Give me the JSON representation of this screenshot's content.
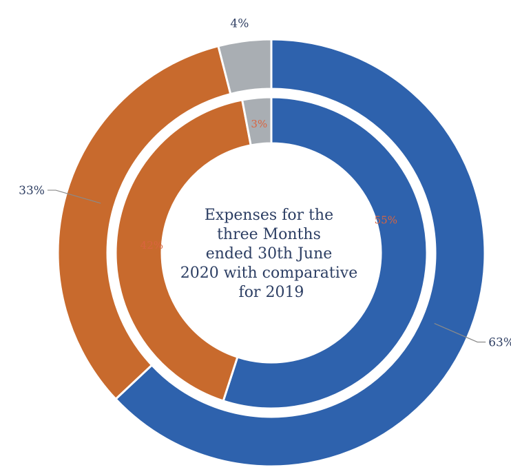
{
  "chart_data": {
    "type": "pie",
    "style": "double-donut",
    "title": "Expenses for the three Months ended 30th June 2020 with comparative for 2019",
    "title_lines": [
      "Expenses for the",
      "three Months",
      "ended 30th June",
      "2020 with comparative",
      "for 2019"
    ],
    "colors": [
      "#2e62ad",
      "#c86a2d",
      "#a9aeb3"
    ],
    "rings": [
      {
        "ring": "outer",
        "values": [
          63,
          33,
          4
        ],
        "labels": [
          "63%",
          "33%",
          "4%"
        ]
      },
      {
        "ring": "inner",
        "values": [
          55,
          42,
          3
        ],
        "labels": [
          "55%",
          "42%",
          "3%"
        ]
      }
    ],
    "legend": "none"
  }
}
